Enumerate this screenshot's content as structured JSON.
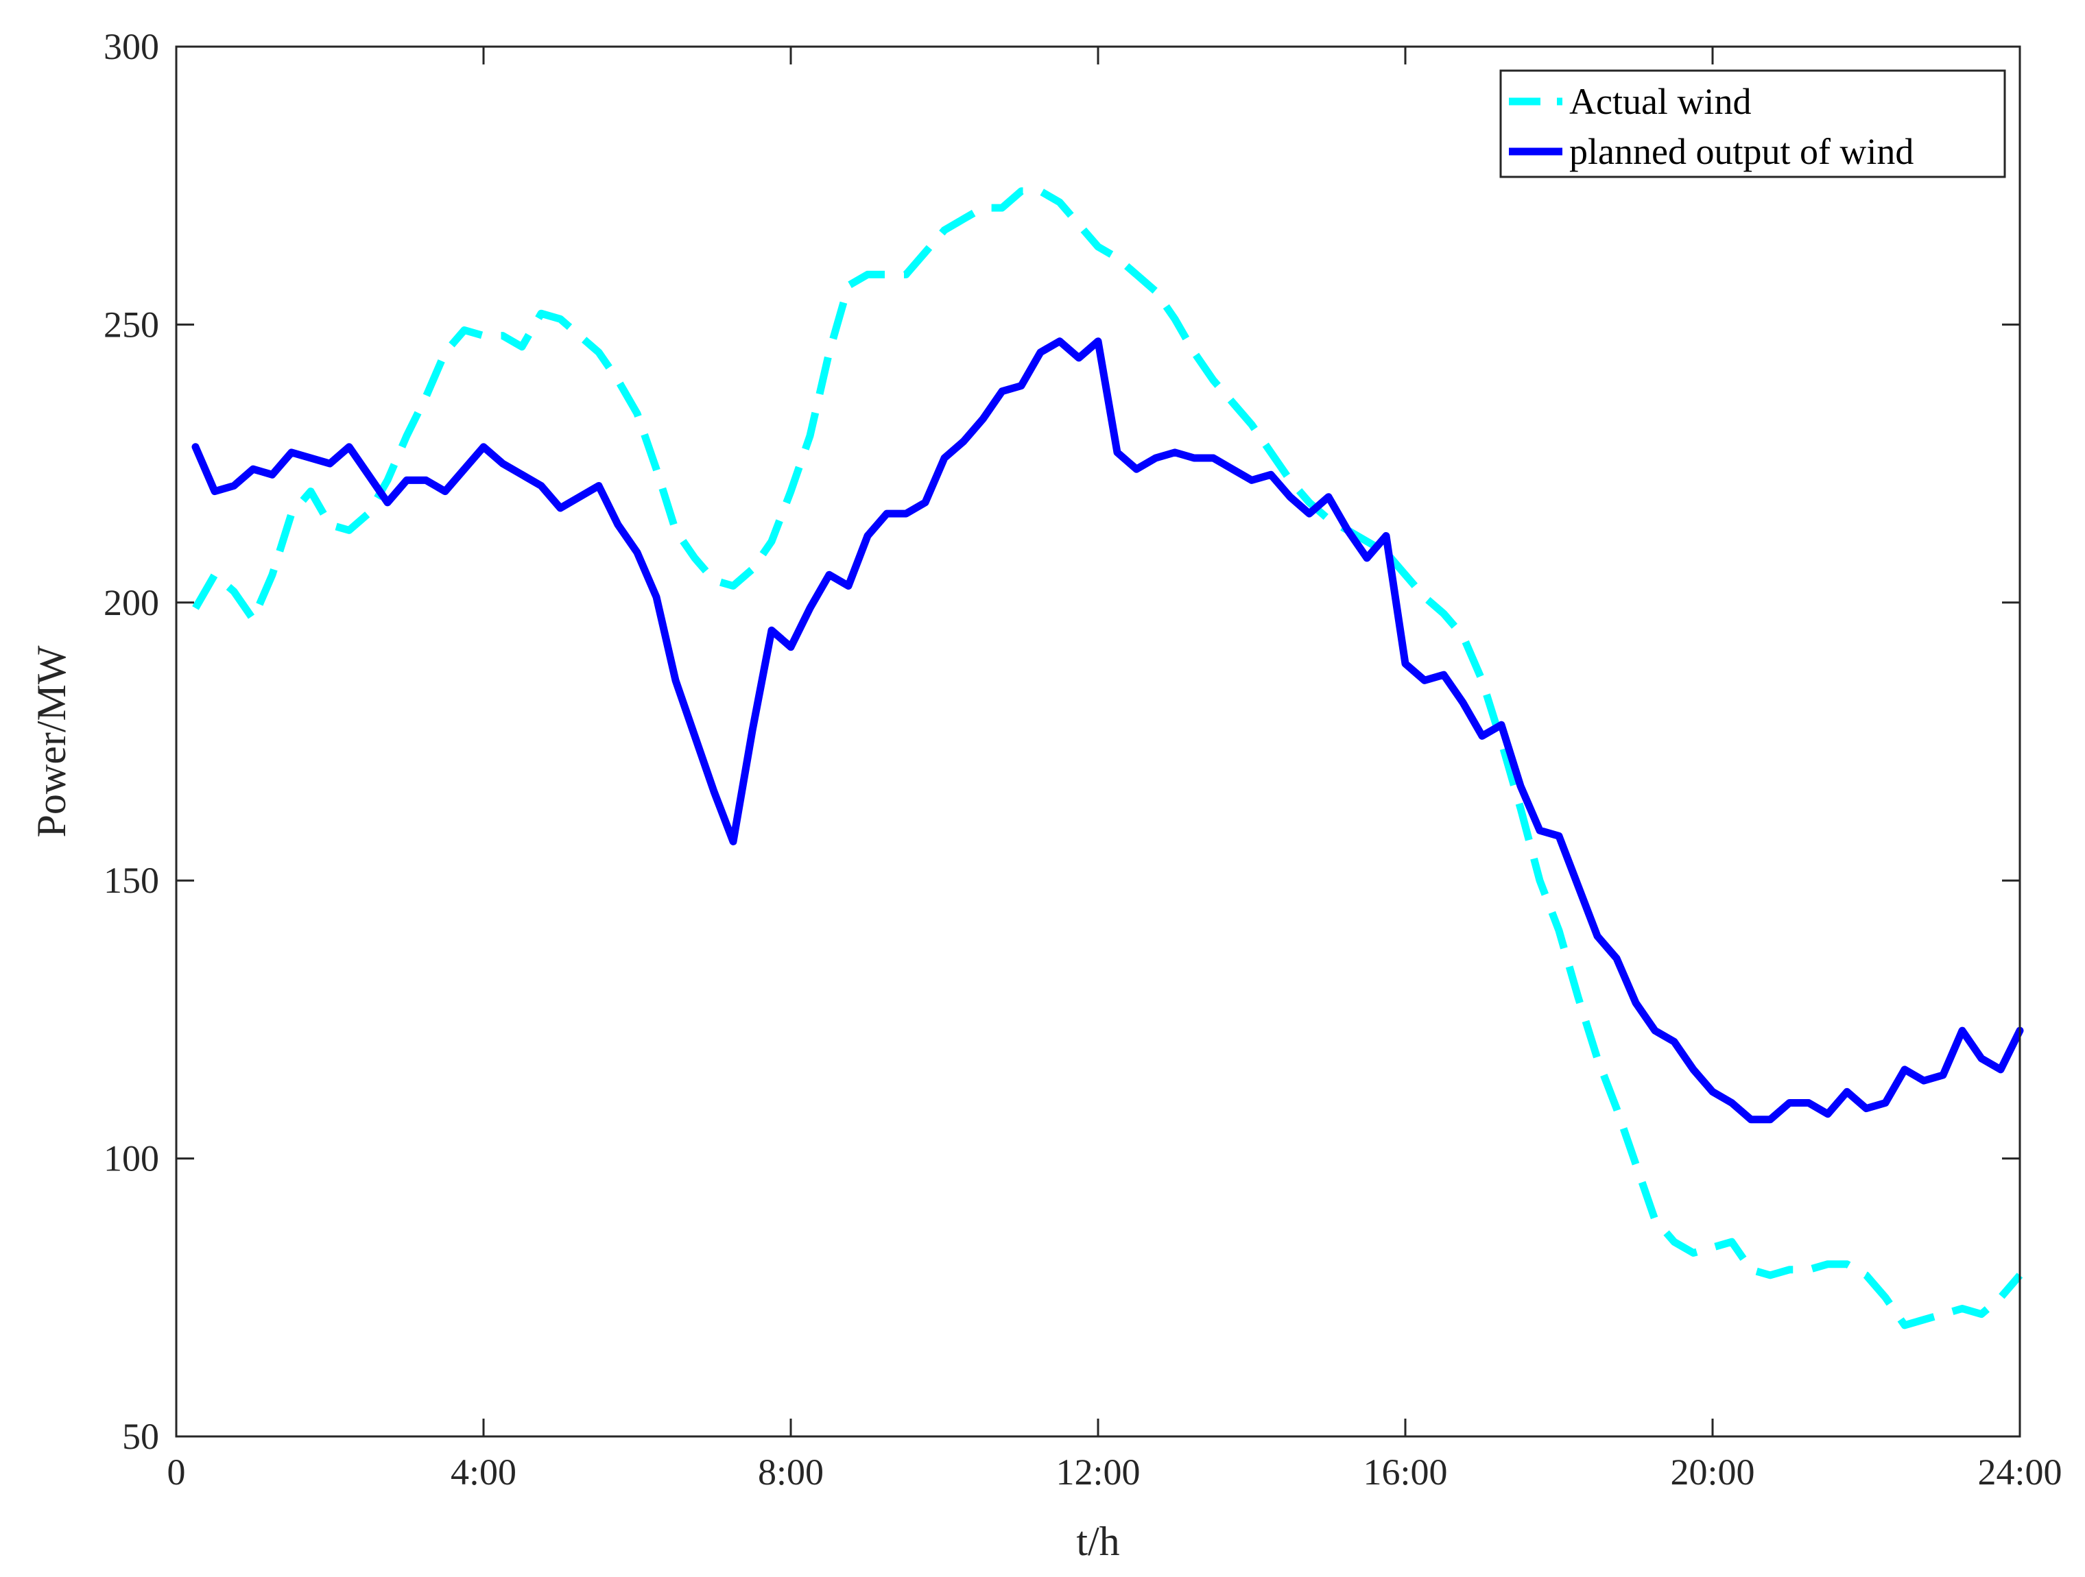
{
  "chart_data": {
    "type": "line",
    "title": "",
    "xlabel": "t/h",
    "ylabel": "Power/MW",
    "xlim": [
      0,
      24
    ],
    "ylim": [
      50,
      300
    ],
    "x_ticks": [
      0,
      4,
      8,
      12,
      16,
      20,
      24
    ],
    "x_tick_labels": [
      "0",
      "4:00",
      "8:00",
      "12:00",
      "16:00",
      "20:00",
      "24:00"
    ],
    "y_ticks": [
      50,
      100,
      150,
      200,
      250,
      300
    ],
    "y_tick_labels": [
      "50",
      "100",
      "150",
      "200",
      "250",
      "300"
    ],
    "grid": false,
    "legend_position": "top-right",
    "series": [
      {
        "name": "Actual wind",
        "color": "#00ffff",
        "style": "dashed",
        "points": [
          [
            0.25,
            199
          ],
          [
            0.5,
            205
          ],
          [
            0.75,
            202
          ],
          [
            1.0,
            197
          ],
          [
            1.25,
            205
          ],
          [
            1.5,
            216
          ],
          [
            1.75,
            220
          ],
          [
            2.0,
            214
          ],
          [
            2.25,
            213
          ],
          [
            2.5,
            216
          ],
          [
            2.75,
            222
          ],
          [
            3.0,
            230
          ],
          [
            3.25,
            237
          ],
          [
            3.5,
            245
          ],
          [
            3.75,
            249
          ],
          [
            4.0,
            248
          ],
          [
            4.25,
            248
          ],
          [
            4.5,
            246
          ],
          [
            4.75,
            252
          ],
          [
            5.0,
            251
          ],
          [
            5.25,
            248
          ],
          [
            5.5,
            245
          ],
          [
            5.75,
            240
          ],
          [
            6.0,
            234
          ],
          [
            6.25,
            224
          ],
          [
            6.5,
            213
          ],
          [
            6.75,
            208
          ],
          [
            7.0,
            204
          ],
          [
            7.25,
            203
          ],
          [
            7.5,
            206
          ],
          [
            7.75,
            211
          ],
          [
            8.0,
            220
          ],
          [
            8.25,
            230
          ],
          [
            8.5,
            245
          ],
          [
            8.75,
            257
          ],
          [
            9.0,
            259
          ],
          [
            9.25,
            259
          ],
          [
            9.5,
            259
          ],
          [
            9.75,
            263
          ],
          [
            10.0,
            267
          ],
          [
            10.25,
            269
          ],
          [
            10.5,
            271
          ],
          [
            10.75,
            271
          ],
          [
            11.0,
            274
          ],
          [
            11.25,
            274
          ],
          [
            11.5,
            272
          ],
          [
            11.75,
            268
          ],
          [
            12.0,
            264
          ],
          [
            12.25,
            262
          ],
          [
            12.5,
            259
          ],
          [
            12.75,
            256
          ],
          [
            13.0,
            251
          ],
          [
            13.25,
            245
          ],
          [
            13.5,
            240
          ],
          [
            13.75,
            236
          ],
          [
            14.0,
            232
          ],
          [
            14.25,
            227
          ],
          [
            14.5,
            222
          ],
          [
            14.75,
            218
          ],
          [
            15.0,
            215
          ],
          [
            15.25,
            213
          ],
          [
            15.5,
            211
          ],
          [
            15.75,
            209
          ],
          [
            16.0,
            205
          ],
          [
            16.25,
            201
          ],
          [
            16.5,
            198
          ],
          [
            16.75,
            194
          ],
          [
            17.0,
            186
          ],
          [
            17.25,
            175
          ],
          [
            17.5,
            163
          ],
          [
            17.75,
            150
          ],
          [
            18.0,
            141
          ],
          [
            18.25,
            129
          ],
          [
            18.5,
            118
          ],
          [
            18.75,
            109
          ],
          [
            19.0,
            99
          ],
          [
            19.25,
            89
          ],
          [
            19.5,
            85
          ],
          [
            19.75,
            83
          ],
          [
            20.0,
            84
          ],
          [
            20.25,
            85
          ],
          [
            20.5,
            80
          ],
          [
            20.75,
            79
          ],
          [
            21.0,
            80
          ],
          [
            21.25,
            80
          ],
          [
            21.5,
            81
          ],
          [
            21.75,
            81
          ],
          [
            22.0,
            79
          ],
          [
            22.25,
            75
          ],
          [
            22.5,
            70
          ],
          [
            22.75,
            71
          ],
          [
            23.0,
            72
          ],
          [
            23.25,
            73
          ],
          [
            23.5,
            72
          ],
          [
            23.75,
            75
          ],
          [
            24.0,
            79
          ]
        ]
      },
      {
        "name": "planned output of wind",
        "color": "#0000ff",
        "style": "solid",
        "points": [
          [
            0.25,
            228
          ],
          [
            0.5,
            220
          ],
          [
            0.75,
            221
          ],
          [
            1.0,
            224
          ],
          [
            1.25,
            223
          ],
          [
            1.5,
            227
          ],
          [
            1.75,
            226
          ],
          [
            2.0,
            225
          ],
          [
            2.25,
            228
          ],
          [
            2.5,
            223
          ],
          [
            2.75,
            218
          ],
          [
            3.0,
            222
          ],
          [
            3.25,
            222
          ],
          [
            3.5,
            220
          ],
          [
            3.75,
            224
          ],
          [
            4.0,
            228
          ],
          [
            4.25,
            225
          ],
          [
            4.5,
            223
          ],
          [
            4.75,
            221
          ],
          [
            5.0,
            217
          ],
          [
            5.25,
            219
          ],
          [
            5.5,
            221
          ],
          [
            5.75,
            214
          ],
          [
            6.0,
            209
          ],
          [
            6.25,
            201
          ],
          [
            6.5,
            186
          ],
          [
            6.75,
            176
          ],
          [
            7.0,
            166
          ],
          [
            7.25,
            157
          ],
          [
            7.5,
            177
          ],
          [
            7.75,
            195
          ],
          [
            8.0,
            192
          ],
          [
            8.25,
            199
          ],
          [
            8.5,
            205
          ],
          [
            8.75,
            203
          ],
          [
            9.0,
            212
          ],
          [
            9.25,
            216
          ],
          [
            9.5,
            216
          ],
          [
            9.75,
            218
          ],
          [
            10.0,
            226
          ],
          [
            10.25,
            229
          ],
          [
            10.5,
            233
          ],
          [
            10.75,
            238
          ],
          [
            11.0,
            239
          ],
          [
            11.25,
            245
          ],
          [
            11.5,
            247
          ],
          [
            11.75,
            244
          ],
          [
            12.0,
            247
          ],
          [
            12.25,
            227
          ],
          [
            12.5,
            224
          ],
          [
            12.75,
            226
          ],
          [
            13.0,
            227
          ],
          [
            13.25,
            226
          ],
          [
            13.5,
            226
          ],
          [
            13.75,
            224
          ],
          [
            14.0,
            222
          ],
          [
            14.25,
            223
          ],
          [
            14.5,
            219
          ],
          [
            14.75,
            216
          ],
          [
            15.0,
            219
          ],
          [
            15.25,
            213
          ],
          [
            15.5,
            208
          ],
          [
            15.75,
            212
          ],
          [
            16.0,
            189
          ],
          [
            16.25,
            186
          ],
          [
            16.5,
            187
          ],
          [
            16.75,
            182
          ],
          [
            17.0,
            176
          ],
          [
            17.25,
            178
          ],
          [
            17.5,
            167
          ],
          [
            17.75,
            159
          ],
          [
            18.0,
            158
          ],
          [
            18.25,
            149
          ],
          [
            18.5,
            140
          ],
          [
            18.75,
            136
          ],
          [
            19.0,
            128
          ],
          [
            19.25,
            123
          ],
          [
            19.5,
            121
          ],
          [
            19.75,
            116
          ],
          [
            20.0,
            112
          ],
          [
            20.25,
            110
          ],
          [
            20.5,
            107
          ],
          [
            20.75,
            107
          ],
          [
            21.0,
            110
          ],
          [
            21.25,
            110
          ],
          [
            21.5,
            108
          ],
          [
            21.75,
            112
          ],
          [
            22.0,
            109
          ],
          [
            22.25,
            110
          ],
          [
            22.5,
            116
          ],
          [
            22.75,
            114
          ],
          [
            23.0,
            115
          ],
          [
            23.25,
            123
          ],
          [
            23.5,
            118
          ],
          [
            23.75,
            116
          ],
          [
            24.0,
            123
          ]
        ]
      }
    ]
  }
}
